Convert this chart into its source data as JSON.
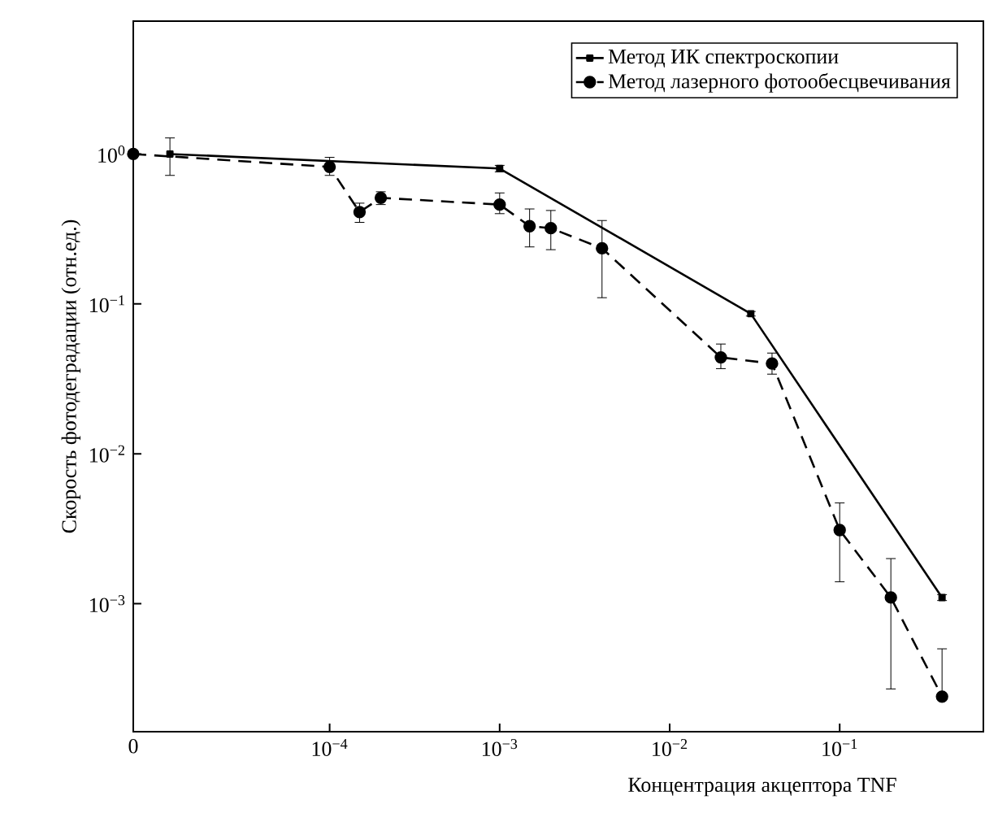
{
  "chart_data": {
    "type": "line",
    "xlabel": "Концентрация акцептора TNF",
    "ylabel": "Скорость фотодеградации (отн.ед.)",
    "log": "xy",
    "xlim": [
      7e-06,
      0.7
    ],
    "ylim": [
      0.00014,
      7.7
    ],
    "xticks": [
      {
        "value": 7e-06,
        "label": "0"
      },
      {
        "value": 0.0001,
        "label": "10$^{−4}$"
      },
      {
        "value": 0.001,
        "label": "10$^{−3}$"
      },
      {
        "value": 0.01,
        "label": "10$^{−2}$"
      },
      {
        "value": 0.1,
        "label": "10$^{−1}$"
      }
    ],
    "yticks": [
      {
        "value": 1,
        "label": "10$^{0}$"
      },
      {
        "value": 0.1,
        "label": "10$^{−1}$"
      },
      {
        "value": 0.01,
        "label": "10$^{−2}$"
      },
      {
        "value": 0.001,
        "label": "10$^{−3}$"
      }
    ],
    "legend": "top right",
    "grid": false,
    "series": [
      {
        "name": "Метод ИК спектроскопии",
        "color": "#000000",
        "marker": "square",
        "line_style": "solid",
        "x": [
          1.15e-05,
          0.001,
          0.03,
          0.4
        ],
        "values": [
          1.0,
          0.8,
          0.086,
          0.0011
        ],
        "errors": [
          [
            0.72,
            1.28
          ],
          [
            0.76,
            0.84
          ],
          [
            0.083,
            0.089
          ],
          [
            0.00105,
            0.00115
          ]
        ]
      },
      {
        "name": "Метод лазерного фотообесцвечивания",
        "color": "#000000",
        "marker": "circle",
        "line_style": "dashed",
        "x": [
          7e-06,
          0.0001,
          0.00015,
          0.0002,
          0.001,
          0.0015,
          0.002,
          0.004,
          0.02,
          0.04,
          0.1,
          0.2,
          0.4
        ],
        "values": [
          1.0,
          0.82,
          0.41,
          0.51,
          0.46,
          0.33,
          0.32,
          0.235,
          0.044,
          0.04,
          0.0031,
          0.0011,
          0.00024
        ],
        "errors": [
          null,
          [
            0.72,
            0.95
          ],
          [
            0.35,
            0.47
          ],
          [
            0.46,
            0.56
          ],
          [
            0.4,
            0.55
          ],
          [
            0.24,
            0.43
          ],
          [
            0.23,
            0.42
          ],
          [
            0.11,
            0.36
          ],
          [
            0.037,
            0.054
          ],
          [
            0.034,
            0.047
          ],
          [
            0.0014,
            0.0047
          ],
          [
            0.00027,
            0.002
          ],
          [
            0.00024,
            0.0005
          ]
        ]
      }
    ]
  }
}
